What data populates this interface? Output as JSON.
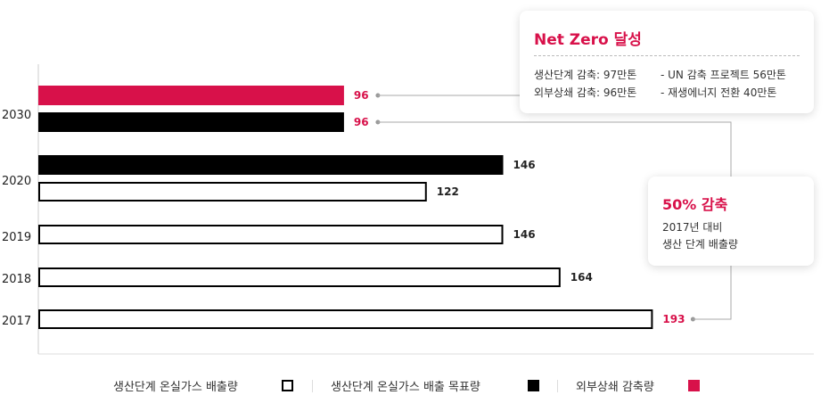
{
  "chart_data": {
    "type": "bar",
    "orientation": "horizontal",
    "categories": [
      "2030",
      "2020",
      "2019",
      "2018",
      "2017"
    ],
    "series": [
      {
        "name": "외부상쇄 감축량",
        "values": [
          96,
          null,
          null,
          null,
          null
        ],
        "color": "#d8114a"
      },
      {
        "name": "생산단계 온실가스 배출 목표량",
        "values": [
          96,
          146,
          null,
          null,
          null
        ],
        "color": "#000000"
      },
      {
        "name": "생산단계 온실가스 배출량",
        "values": [
          null,
          122,
          146,
          164,
          193
        ],
        "color": "#ffffff"
      }
    ],
    "value_labels": {
      "2030": [
        "96",
        "96"
      ],
      "2020": [
        "146",
        "122"
      ],
      "2019": [
        "146"
      ],
      "2018": [
        "164"
      ],
      "2017": [
        "193"
      ]
    },
    "xlim": [
      0,
      200
    ],
    "title": "",
    "xlabel": "",
    "ylabel": "",
    "grid": false,
    "legend_position": "bottom-center"
  },
  "annotations": {
    "net_zero": {
      "title": "Net Zero 달성",
      "line1_left": "생산단계 감축: 97만톤",
      "line1_right": "- UN 감축 프로젝트 56만톤",
      "line2_left": "외부상쇄 감축: 96만톤",
      "line2_right": "- 재생에너지 전환 40만톤"
    },
    "reduction": {
      "title": "50% 감축",
      "line1": "2017년 대비",
      "line2": "생산 단계 배출량"
    }
  },
  "legend": [
    {
      "label": "생산단계 온실가스 배출량",
      "style": "outline"
    },
    {
      "label": "생산단계 온실가스 배출 목표량",
      "style": "black"
    },
    {
      "label": "외부상쇄 감축량",
      "style": "red"
    }
  ],
  "colors": {
    "accent": "#d8114a",
    "black": "#000000",
    "outline": "#000000"
  }
}
